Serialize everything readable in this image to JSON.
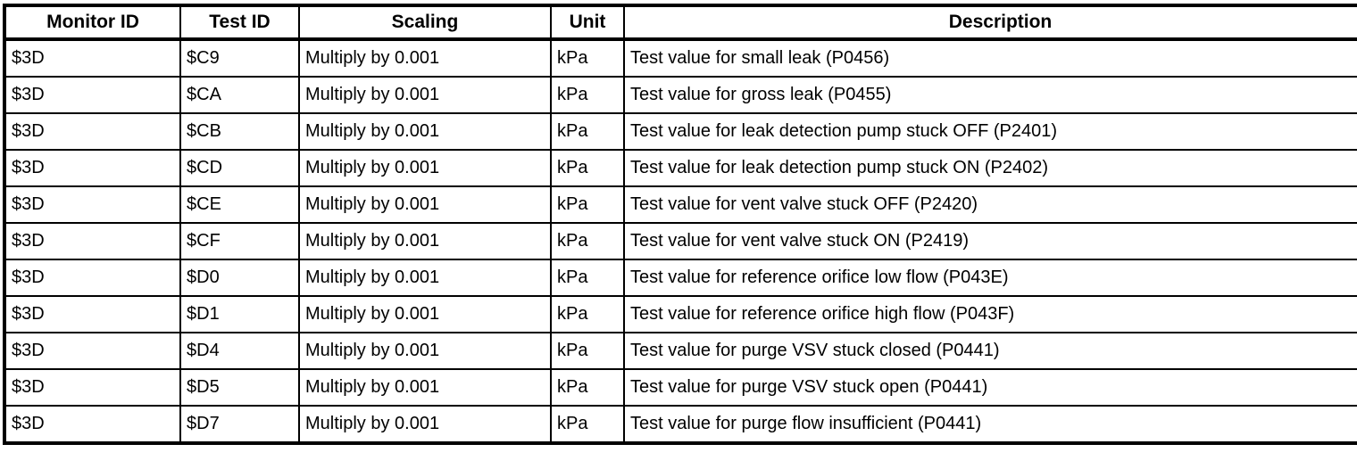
{
  "table": {
    "headers": [
      "Monitor ID",
      "Test ID",
      "Scaling",
      "Unit",
      "Description"
    ],
    "rows": [
      [
        "$3D",
        "$C9",
        "Multiply by 0.001",
        "kPa",
        "Test value for small leak (P0456)"
      ],
      [
        "$3D",
        "$CA",
        "Multiply by 0.001",
        "kPa",
        "Test value for gross leak (P0455)"
      ],
      [
        "$3D",
        "$CB",
        "Multiply by 0.001",
        "kPa",
        "Test value for leak detection pump stuck OFF (P2401)"
      ],
      [
        "$3D",
        "$CD",
        "Multiply by 0.001",
        "kPa",
        "Test value for leak detection pump stuck ON (P2402)"
      ],
      [
        "$3D",
        "$CE",
        "Multiply by 0.001",
        "kPa",
        "Test value for vent valve stuck OFF (P2420)"
      ],
      [
        "$3D",
        "$CF",
        "Multiply by 0.001",
        "kPa",
        "Test value for vent valve stuck ON (P2419)"
      ],
      [
        "$3D",
        "$D0",
        "Multiply by 0.001",
        "kPa",
        "Test value for reference orifice low flow (P043E)"
      ],
      [
        "$3D",
        "$D1",
        "Multiply by 0.001",
        "kPa",
        "Test value for reference orifice high flow (P043F)"
      ],
      [
        "$3D",
        "$D4",
        "Multiply by 0.001",
        "kPa",
        "Test value for purge VSV stuck closed (P0441)"
      ],
      [
        "$3D",
        "$D5",
        "Multiply by 0.001",
        "kPa",
        "Test value for purge VSV stuck open (P0441)"
      ],
      [
        "$3D",
        "$D7",
        "Multiply by 0.001",
        "kPa",
        "Test value for purge flow insufficient (P0441)"
      ]
    ],
    "colors": {
      "border": "#000000",
      "text": "#000000",
      "background": "#ffffff"
    }
  }
}
